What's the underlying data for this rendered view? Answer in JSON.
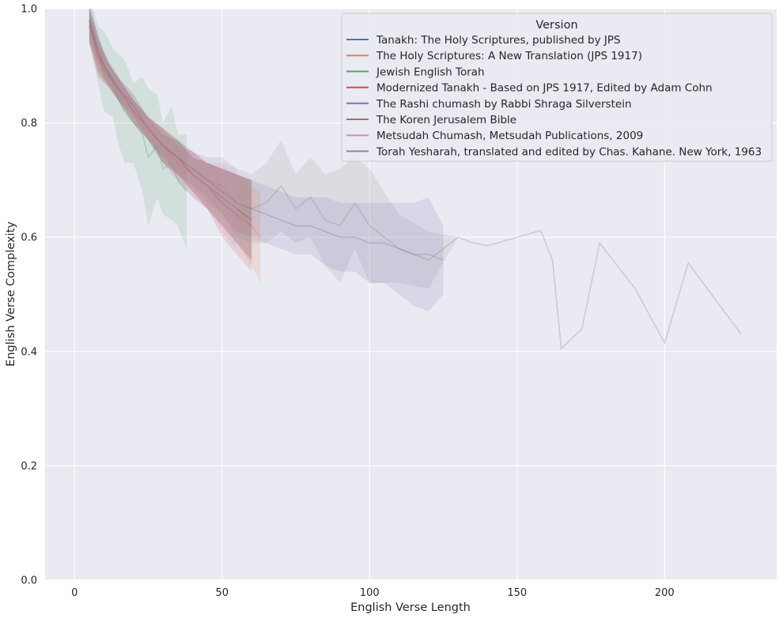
{
  "chart_data": {
    "type": "line",
    "xlabel": "English Verse Length",
    "ylabel": "English Verse Complexity",
    "xlim": [
      -10,
      238
    ],
    "ylim": [
      0.0,
      1.0
    ],
    "x_ticks": [
      0,
      50,
      100,
      150,
      200
    ],
    "y_ticks": [
      0.0,
      0.2,
      0.4,
      0.6,
      0.8,
      1.0
    ],
    "grid": true,
    "background": "#eaeaf2",
    "legend": {
      "title": "Version",
      "placement": "top-right"
    },
    "series": [
      {
        "name": "Tanakh: The Holy Scriptures, published by JPS",
        "color": "#4c72b0",
        "x": [
          5,
          8,
          12,
          16,
          20,
          25,
          30,
          35,
          40,
          45,
          50,
          55,
          60
        ],
        "y": [
          0.98,
          0.92,
          0.88,
          0.85,
          0.82,
          0.79,
          0.76,
          0.74,
          0.71,
          0.69,
          0.67,
          0.65,
          0.63
        ],
        "band": [
          0.03,
          0.03,
          0.02,
          0.02,
          0.02,
          0.02,
          0.03,
          0.03,
          0.03,
          0.04,
          0.05,
          0.06,
          0.07
        ]
      },
      {
        "name": "The Holy Scriptures: A New Translation (JPS 1917)",
        "color": "#dd8452",
        "x": [
          5,
          8,
          12,
          16,
          20,
          25,
          30,
          35,
          40,
          45,
          50,
          55,
          60,
          63
        ],
        "y": [
          0.97,
          0.92,
          0.88,
          0.85,
          0.82,
          0.79,
          0.76,
          0.74,
          0.71,
          0.69,
          0.67,
          0.65,
          0.62,
          0.6
        ],
        "band": [
          0.03,
          0.03,
          0.02,
          0.02,
          0.02,
          0.02,
          0.03,
          0.03,
          0.03,
          0.04,
          0.05,
          0.06,
          0.07,
          0.08
        ]
      },
      {
        "name": "Jewish English Torah",
        "color": "#55a868",
        "x": [
          5,
          8,
          10,
          13,
          15,
          17,
          20,
          23,
          25,
          28,
          30,
          33,
          35,
          38
        ],
        "y": [
          0.98,
          0.92,
          0.89,
          0.87,
          0.84,
          0.82,
          0.8,
          0.78,
          0.74,
          0.76,
          0.72,
          0.73,
          0.7,
          0.68
        ],
        "band": [
          0.04,
          0.05,
          0.07,
          0.06,
          0.08,
          0.09,
          0.07,
          0.1,
          0.12,
          0.09,
          0.08,
          0.1,
          0.08,
          0.1
        ]
      },
      {
        "name": "Modernized Tanakh - Based on JPS 1917, Edited by Adam Cohn",
        "color": "#c44e52",
        "x": [
          5,
          8,
          12,
          16,
          20,
          25,
          30,
          35,
          40,
          45,
          50,
          55,
          60
        ],
        "y": [
          0.97,
          0.91,
          0.88,
          0.85,
          0.82,
          0.79,
          0.76,
          0.73,
          0.71,
          0.69,
          0.66,
          0.64,
          0.62
        ],
        "band": [
          0.03,
          0.03,
          0.02,
          0.02,
          0.02,
          0.02,
          0.03,
          0.03,
          0.04,
          0.04,
          0.06,
          0.07,
          0.08
        ]
      },
      {
        "name": "The Rashi chumash by Rabbi Shraga Silverstein",
        "color": "#8172b3",
        "x": [
          5,
          10,
          15,
          20,
          25,
          30,
          35,
          40,
          45,
          50,
          55,
          60,
          65,
          70,
          75,
          80,
          85,
          90,
          95,
          100,
          105,
          110,
          115,
          120,
          125
        ],
        "y": [
          0.98,
          0.9,
          0.86,
          0.83,
          0.79,
          0.76,
          0.74,
          0.72,
          0.7,
          0.68,
          0.66,
          0.65,
          0.64,
          0.63,
          0.62,
          0.62,
          0.61,
          0.6,
          0.6,
          0.59,
          0.59,
          0.58,
          0.57,
          0.57,
          0.56
        ],
        "band": [
          0.03,
          0.02,
          0.02,
          0.02,
          0.02,
          0.02,
          0.03,
          0.03,
          0.03,
          0.04,
          0.05,
          0.05,
          0.05,
          0.05,
          0.05,
          0.05,
          0.06,
          0.06,
          0.06,
          0.07,
          0.07,
          0.08,
          0.09,
          0.1,
          0.06
        ]
      },
      {
        "name": "The Koren Jerusalem Bible",
        "color": "#937860",
        "x": [
          5,
          8,
          12,
          16,
          20,
          25,
          30,
          35,
          40,
          45,
          50,
          55,
          60
        ],
        "y": [
          0.97,
          0.92,
          0.88,
          0.85,
          0.82,
          0.79,
          0.76,
          0.74,
          0.71,
          0.69,
          0.67,
          0.65,
          0.63
        ],
        "band": [
          0.03,
          0.03,
          0.02,
          0.02,
          0.02,
          0.02,
          0.03,
          0.03,
          0.03,
          0.04,
          0.05,
          0.06,
          0.07
        ]
      },
      {
        "name": "Metsudah Chumash, Metsudah Publications, 2009",
        "color": "#da8bc3",
        "x": [
          5,
          8,
          12,
          16,
          20,
          25,
          30,
          35,
          40,
          45,
          50,
          55
        ],
        "y": [
          0.97,
          0.91,
          0.88,
          0.85,
          0.82,
          0.79,
          0.76,
          0.73,
          0.71,
          0.69,
          0.67,
          0.65
        ],
        "band": [
          0.03,
          0.03,
          0.02,
          0.02,
          0.02,
          0.02,
          0.03,
          0.03,
          0.04,
          0.04,
          0.06,
          0.07
        ]
      },
      {
        "name": "Torah Yesharah, translated and edited by Chas. Kahane. New York, 1963",
        "color": "#8c8c8c",
        "x": [
          5,
          10,
          15,
          20,
          25,
          30,
          35,
          40,
          45,
          50,
          55,
          60,
          65,
          70,
          75,
          80,
          85,
          90,
          95,
          100,
          110,
          120,
          130,
          135,
          140,
          150,
          158,
          162,
          165,
          172,
          178,
          190,
          200,
          208,
          226
        ],
        "y": [
          0.97,
          0.9,
          0.86,
          0.83,
          0.79,
          0.76,
          0.74,
          0.72,
          0.7,
          0.69,
          0.66,
          0.65,
          0.66,
          0.69,
          0.65,
          0.67,
          0.63,
          0.62,
          0.66,
          0.62,
          0.58,
          0.56,
          0.6,
          0.59,
          0.585,
          0.6,
          0.612,
          0.56,
          0.405,
          0.44,
          0.59,
          0.51,
          0.415,
          0.555,
          0.43
        ],
        "band": [
          0.03,
          0.02,
          0.02,
          0.02,
          0.02,
          0.02,
          0.03,
          0.03,
          0.04,
          0.05,
          0.06,
          0.06,
          0.07,
          0.08,
          0.06,
          0.07,
          0.08,
          0.1,
          0.08,
          0.1,
          0.06,
          0.05,
          0.0,
          0.0,
          0.0,
          0.0,
          0.0,
          0.0,
          0.0,
          0.0,
          0.0,
          0.0,
          0.0,
          0.0,
          0.0
        ]
      }
    ]
  }
}
